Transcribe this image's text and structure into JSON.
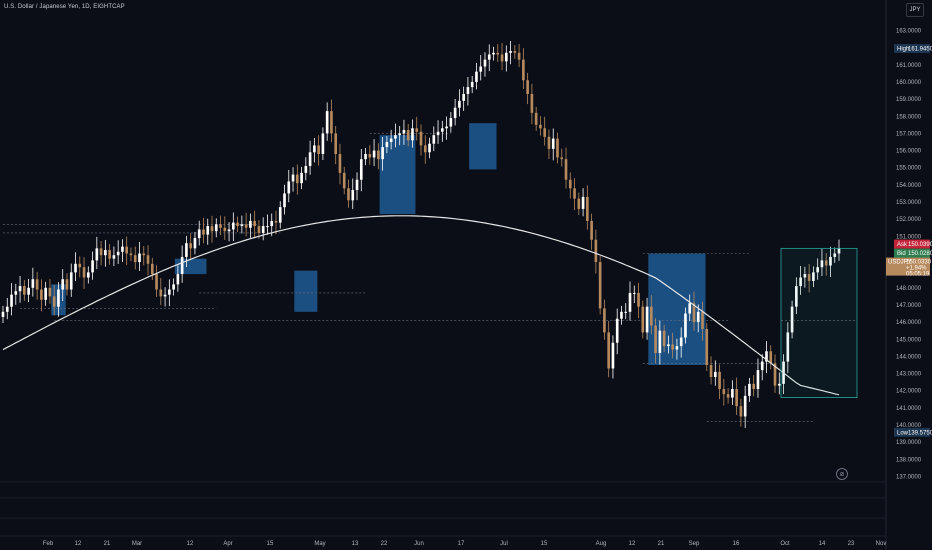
{
  "header": {
    "title": "U.S. Dollar / Japanese Yen, 1D, EIGHTCAP",
    "currency_button": "JPY"
  },
  "colors": {
    "background": "#0b0e17",
    "bull_candle": "#ffffff",
    "bear_candle": "#b78a5e",
    "moving_average": "#e6e6e6",
    "demand_zone": "#1e5a94",
    "position_box": "#26a69a",
    "ask_tag": "#c2253a",
    "bid_tag": "#2e7d4f",
    "last_tag": "#b78a5e",
    "high_low_tag": "#1c3550"
  },
  "chart_data": {
    "type": "candlestick",
    "title": "U.S. Dollar / Japanese Yen, 1D, EIGHTCAP",
    "xlabel": "",
    "ylabel": "",
    "ylim": [
      136.7,
      163.15
    ],
    "grid": false,
    "y_ticks": [
      "163.0000",
      "162.0000",
      "161.0000",
      "160.0000",
      "159.0000",
      "158.0000",
      "157.0000",
      "156.0000",
      "155.0000",
      "154.0000",
      "153.0000",
      "152.0000",
      "151.0000",
      "150.0000",
      "149.0000",
      "148.0000",
      "147.0000",
      "146.0000",
      "145.0000",
      "144.0000",
      "143.0000",
      "142.0000",
      "141.0000",
      "140.0000",
      "139.0000",
      "138.0000",
      "137.0000"
    ],
    "x_ticks": [
      "Feb",
      "12",
      "21",
      "Mar",
      "12",
      "Apr",
      "15",
      "May",
      "13",
      "22",
      "Jun",
      "17",
      "Jul",
      "15",
      "Aug",
      "12",
      "21",
      "Sep",
      "16",
      "Oct",
      "14",
      "23",
      "Nov"
    ],
    "close_series": [
      146.6,
      146.9,
      147.6,
      147.8,
      148.1,
      147.6,
      148.0,
      148.5,
      147.9,
      147.3,
      148.0,
      147.5,
      146.9,
      147.9,
      148.5,
      147.9,
      148.9,
      149.4,
      149.2,
      148.6,
      148.9,
      149.6,
      150.3,
      149.9,
      150.2,
      149.7,
      149.9,
      150.1,
      150.4,
      150.0,
      149.9,
      149.5,
      150.0,
      149.9,
      149.4,
      148.8,
      147.9,
      147.5,
      147.6,
      147.9,
      148.2,
      148.8,
      149.8,
      150.6,
      150.3,
      150.9,
      151.4,
      151.1,
      151.6,
      151.3,
      151.7,
      151.5,
      151.3,
      151.4,
      151.8,
      151.6,
      151.7,
      151.5,
      151.9,
      151.6,
      151.2,
      151.6,
      151.6,
      151.9,
      151.8,
      152.7,
      153.5,
      154.2,
      154.6,
      154.1,
      154.7,
      155.1,
      155.9,
      156.3,
      155.8,
      157.0,
      158.3,
      157.0,
      155.8,
      154.7,
      153.8,
      153.1,
      153.7,
      154.3,
      155.5,
      155.8,
      155.6,
      156.0,
      155.5,
      156.2,
      156.5,
      156.7,
      156.9,
      157.0,
      157.2,
      156.6,
      157.3,
      157.1,
      156.3,
      155.9,
      156.4,
      156.9,
      157.1,
      157.3,
      157.4,
      157.9,
      158.5,
      158.9,
      159.3,
      159.7,
      160.0,
      160.6,
      160.9,
      161.3,
      161.6,
      161.7,
      161.6,
      161.2,
      161.7,
      161.8,
      161.7,
      161.3,
      160.1,
      159.3,
      158.2,
      157.5,
      157.3,
      156.8,
      156.1,
      156.7,
      155.6,
      155.5,
      154.3,
      153.8,
      153.2,
      152.6,
      153.3,
      151.9,
      150.8,
      149.5,
      146.8,
      145.4,
      143.3,
      144.8,
      146.2,
      146.6,
      146.6,
      147.7,
      147.7,
      146.9,
      145.4,
      146.9,
      145.8,
      144.2,
      145.5,
      144.6,
      144.7,
      144.4,
      144.6,
      145.1,
      146.5,
      147.1,
      146.0,
      146.6,
      145.6,
      143.5,
      142.8,
      143.1,
      142.1,
      141.8,
      141.6,
      142.1,
      141.1,
      140.5,
      141.7,
      142.4,
      142.1,
      143.2,
      143.7,
      144.3,
      143.6,
      142.3,
      142.4,
      143.7,
      145.4,
      146.9,
      148.1,
      148.6,
      148.8,
      148.4,
      148.9,
      149.2,
      149.6,
      149.3,
      149.8,
      150.0,
      150.3
    ]
  },
  "price_tags": {
    "high_label": "High",
    "high_value": "161.9450",
    "ask_label": "Ask",
    "ask_value": "150.0390",
    "bid_label": "Bid",
    "bid_value": "150.0280",
    "symbol": "USDJPY",
    "last_value": "150.0330",
    "change": "+1.94%",
    "countdown": "05:05:19",
    "low_label": "Low",
    "low_value": "139.5750"
  }
}
